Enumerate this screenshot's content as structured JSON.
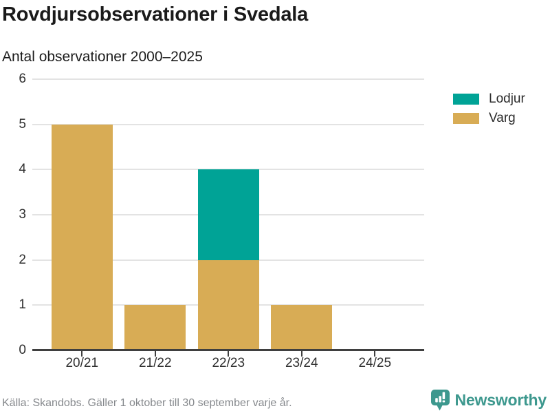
{
  "header": {
    "title": "Rovdjursobservationer i Svedala",
    "subtitle": "Antal observationer 2000–2025"
  },
  "chart_data": {
    "type": "bar",
    "stacked": true,
    "title": "Rovdjursobservationer i Svedala",
    "subtitle": "Antal observationer 2000–2025",
    "categories": [
      "20/21",
      "21/22",
      "22/23",
      "23/24",
      "24/25"
    ],
    "series": [
      {
        "name": "Lodjur",
        "color": "#00a396",
        "values": [
          0,
          0,
          2,
          0,
          0
        ]
      },
      {
        "name": "Varg",
        "color": "#d8ac55",
        "values": [
          5,
          1,
          2,
          1,
          0
        ]
      }
    ],
    "stack_order_bottom_to_top": [
      "Varg",
      "Lodjur"
    ],
    "xlabel": "",
    "ylabel": "",
    "ylim": [
      0,
      6
    ],
    "yticks": [
      0,
      1,
      2,
      3,
      4,
      5,
      6
    ],
    "grid": "horizontal",
    "legend_position": "right"
  },
  "legend": {
    "items": [
      {
        "label": "Lodjur",
        "color": "#00a396"
      },
      {
        "label": "Varg",
        "color": "#d8ac55"
      }
    ]
  },
  "footer": {
    "source": "Källa: Skandobs. Gäller 1 oktober till 30 september varje år."
  },
  "branding": {
    "name": "Newsworthy",
    "color": "#3d988e"
  },
  "colors": {
    "gridline": "#e3e3e3",
    "axis": "#3f3f3f",
    "text": "#303030"
  }
}
